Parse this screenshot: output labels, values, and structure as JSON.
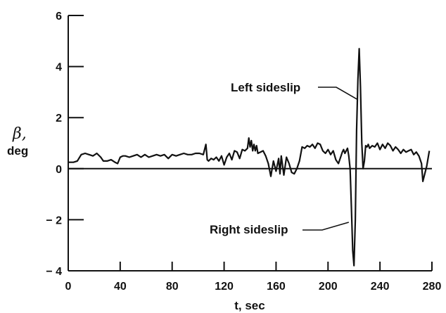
{
  "chart_data": {
    "type": "line",
    "title": "",
    "xlabel": "t, sec",
    "ylabel_symbol": "β,",
    "ylabel_unit": "deg",
    "xlim": [
      0,
      280
    ],
    "ylim": [
      -4,
      6
    ],
    "xticks": [
      0,
      40,
      80,
      120,
      160,
      200,
      240,
      280
    ],
    "yticks": [
      6,
      4,
      2,
      0,
      -2,
      -4
    ],
    "ytick_labels": [
      "6",
      "4",
      "2",
      "0",
      "− 2",
      "− 4"
    ],
    "grid": false,
    "zero_line": true,
    "line_color": "#111111",
    "annotations": [
      {
        "label": "Left sideslip",
        "point": [
          223,
          2.7
        ]
      },
      {
        "label": "Right sideslip",
        "point": [
          216,
          -2.1
        ]
      }
    ],
    "series": [
      {
        "x": [
          0,
          4,
          7,
          10,
          13,
          16,
          19,
          22,
          25,
          27,
          30,
          33,
          36,
          38,
          40,
          42,
          44,
          47,
          50,
          53,
          56,
          59,
          62,
          65,
          68,
          71,
          74,
          77,
          80,
          83,
          86,
          89,
          92,
          95,
          98,
          101,
          104,
          106,
          107,
          108,
          110,
          112,
          114,
          116,
          118,
          120,
          122,
          124,
          126,
          128,
          130,
          132,
          134,
          136,
          138,
          139,
          140,
          141,
          142,
          143,
          144,
          145,
          146,
          148,
          150,
          152,
          154,
          156,
          158,
          160,
          162,
          163,
          164,
          166,
          168,
          170,
          172,
          174,
          176,
          178,
          180,
          182,
          184,
          186,
          188,
          190,
          192,
          194,
          196,
          198,
          200,
          202,
          204,
          206,
          208,
          210,
          211,
          212,
          213,
          214,
          215,
          216,
          217,
          218,
          219,
          220,
          221,
          222,
          223,
          224,
          225,
          226,
          227,
          228,
          229,
          230,
          231,
          232,
          234,
          236,
          238,
          240,
          242,
          244,
          246,
          248,
          250,
          252,
          254,
          256,
          258,
          260,
          262,
          264,
          266,
          268,
          270,
          272,
          273,
          274,
          276,
          278
        ],
        "y": [
          0.25,
          0.25,
          0.3,
          0.55,
          0.6,
          0.55,
          0.5,
          0.6,
          0.45,
          0.3,
          0.3,
          0.35,
          0.25,
          0.2,
          0.45,
          0.5,
          0.5,
          0.45,
          0.5,
          0.55,
          0.45,
          0.55,
          0.45,
          0.5,
          0.55,
          0.5,
          0.55,
          0.4,
          0.55,
          0.5,
          0.55,
          0.6,
          0.55,
          0.55,
          0.6,
          0.6,
          0.55,
          0.95,
          0.35,
          0.3,
          0.4,
          0.35,
          0.45,
          0.3,
          0.5,
          0.15,
          0.45,
          0.6,
          0.35,
          0.7,
          0.65,
          0.4,
          0.75,
          0.7,
          0.8,
          1.2,
          0.85,
          1.1,
          0.7,
          0.95,
          0.7,
          0.9,
          0.6,
          0.65,
          0.7,
          0.5,
          0.2,
          -0.3,
          0.3,
          -0.1,
          0.4,
          -0.2,
          0.5,
          -0.25,
          0.45,
          0.2,
          -0.15,
          -0.2,
          0.0,
          0.3,
          0.85,
          0.8,
          0.9,
          0.85,
          0.95,
          0.8,
          1.0,
          0.95,
          0.7,
          0.6,
          0.75,
          0.55,
          0.7,
          0.35,
          0.2,
          0.5,
          0.65,
          0.75,
          0.6,
          0.7,
          0.8,
          0.5,
          0.0,
          -1.5,
          -3.2,
          -3.8,
          -2.0,
          1.5,
          3.5,
          4.7,
          3.2,
          1.0,
          0.0,
          0.3,
          0.9,
          0.85,
          0.95,
          0.8,
          0.9,
          0.85,
          1.0,
          0.75,
          0.95,
          0.8,
          1.0,
          0.9,
          0.7,
          0.85,
          0.75,
          0.6,
          0.75,
          0.65,
          0.7,
          0.75,
          0.55,
          0.65,
          0.5,
          0.2,
          -0.5,
          -0.3,
          0.1,
          0.7
        ]
      }
    ]
  }
}
